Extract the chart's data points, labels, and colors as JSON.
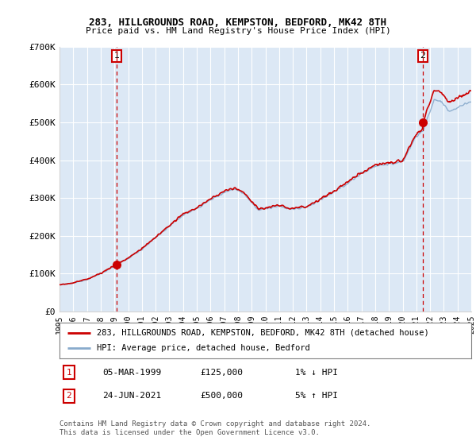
{
  "title": "283, HILLGROUNDS ROAD, KEMPSTON, BEDFORD, MK42 8TH",
  "subtitle": "Price paid vs. HM Land Registry's House Price Index (HPI)",
  "legend_line1": "283, HILLGROUNDS ROAD, KEMPSTON, BEDFORD, MK42 8TH (detached house)",
  "legend_line2": "HPI: Average price, detached house, Bedford",
  "footnote": "Contains HM Land Registry data © Crown copyright and database right 2024.\nThis data is licensed under the Open Government Licence v3.0.",
  "annotation1_label": "1",
  "annotation1_date": "05-MAR-1999",
  "annotation1_price": "£125,000",
  "annotation1_hpi": "1% ↓ HPI",
  "annotation2_label": "2",
  "annotation2_date": "24-JUN-2021",
  "annotation2_price": "£500,000",
  "annotation2_hpi": "5% ↑ HPI",
  "sale1_x": 1999.17,
  "sale1_y": 125000,
  "sale2_x": 2021.48,
  "sale2_y": 500000,
  "line_color": "#cc0000",
  "hpi_color": "#88aacc",
  "annotation_box_color": "#cc0000",
  "dashed_color": "#cc0000",
  "chart_bg": "#dce8f5",
  "ylim": [
    0,
    700000
  ],
  "xlim_start": 1995,
  "xlim_end": 2025,
  "yticks": [
    0,
    100000,
    200000,
    300000,
    400000,
    500000,
    600000,
    700000
  ],
  "ytick_labels": [
    "£0",
    "£100K",
    "£200K",
    "£300K",
    "£400K",
    "£500K",
    "£600K",
    "£700K"
  ],
  "xticks": [
    1995,
    1996,
    1997,
    1998,
    1999,
    2000,
    2001,
    2002,
    2003,
    2004,
    2005,
    2006,
    2007,
    2008,
    2009,
    2010,
    2011,
    2012,
    2013,
    2014,
    2015,
    2016,
    2017,
    2018,
    2019,
    2020,
    2021,
    2022,
    2023,
    2024,
    2025
  ],
  "fig_width": 6.0,
  "fig_height": 5.6,
  "dpi": 100
}
